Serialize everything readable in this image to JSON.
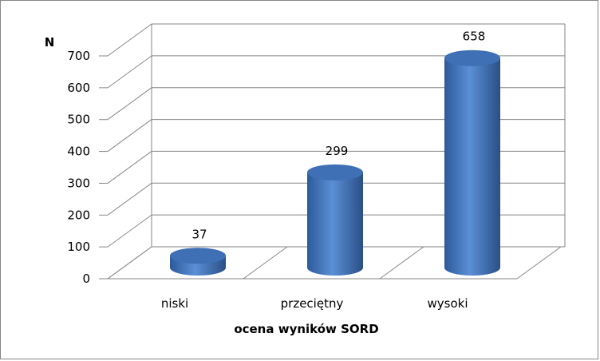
{
  "chart_data": {
    "type": "bar",
    "style": "3d-cylinder",
    "categories": [
      "niski",
      "przeciętny",
      "wysoki"
    ],
    "values": [
      37,
      299,
      658
    ],
    "data_labels": [
      "37",
      "299",
      "658"
    ],
    "title": "",
    "xlabel": "ocena wyników SORD",
    "ylabel": "N",
    "ylim": [
      0,
      700
    ],
    "yticks": [
      0,
      100,
      200,
      300,
      400,
      500,
      600,
      700
    ],
    "ytick_labels": [
      "0",
      "100",
      "200",
      "300",
      "400",
      "500",
      "600",
      "700"
    ],
    "grid": true,
    "legend": "none",
    "bar_color": "#4a7ebb"
  }
}
